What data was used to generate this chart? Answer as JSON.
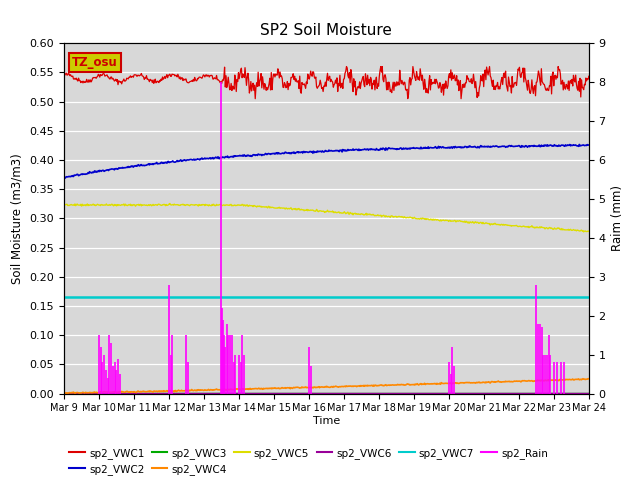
{
  "title": "SP2 Soil Moisture",
  "xlabel": "Time",
  "ylabel_left": "Soil Moisture (m3/m3)",
  "ylabel_right": "Raim (mm)",
  "ylim_left": [
    0.0,
    0.6
  ],
  "ylim_right": [
    0.0,
    9.0
  ],
  "yticks_left": [
    0.0,
    0.05,
    0.1,
    0.15,
    0.2,
    0.25,
    0.3,
    0.35,
    0.4,
    0.45,
    0.5,
    0.55,
    0.6
  ],
  "yticks_right": [
    0.0,
    1.0,
    2.0,
    3.0,
    4.0,
    5.0,
    6.0,
    7.0,
    8.0,
    9.0
  ],
  "bg_color": "#d8d8d8",
  "line_colors": {
    "VWC1": "#dd0000",
    "VWC2": "#0000cc",
    "VWC3": "#00aa00",
    "VWC4": "#ff8800",
    "VWC5": "#dddd00",
    "VWC6": "#990099",
    "VWC7": "#00cccc",
    "Rain": "#ff00ff"
  },
  "annotation_text": "TZ_osu",
  "annotation_color": "#cc0000",
  "annotation_bg": "#cccc00",
  "xtick_labels": [
    "Mar 9",
    "Mar 10",
    "Mar 11",
    "Mar 12",
    "Mar 13",
    "Mar 14",
    "Mar 15",
    "Mar 16",
    "Mar 17",
    "Mar 18",
    "Mar 19",
    "Mar 20",
    "Mar 21",
    "Mar 22",
    "Mar 23",
    "Mar 24"
  ],
  "legend_entries_row1": [
    "sp2_VWC1",
    "sp2_VWC2",
    "sp2_VWC3",
    "sp2_VWC4",
    "sp2_VWC5",
    "sp2_VWC6"
  ],
  "legend_entries_row2": [
    "sp2_VWC7",
    "sp2_Rain"
  ]
}
